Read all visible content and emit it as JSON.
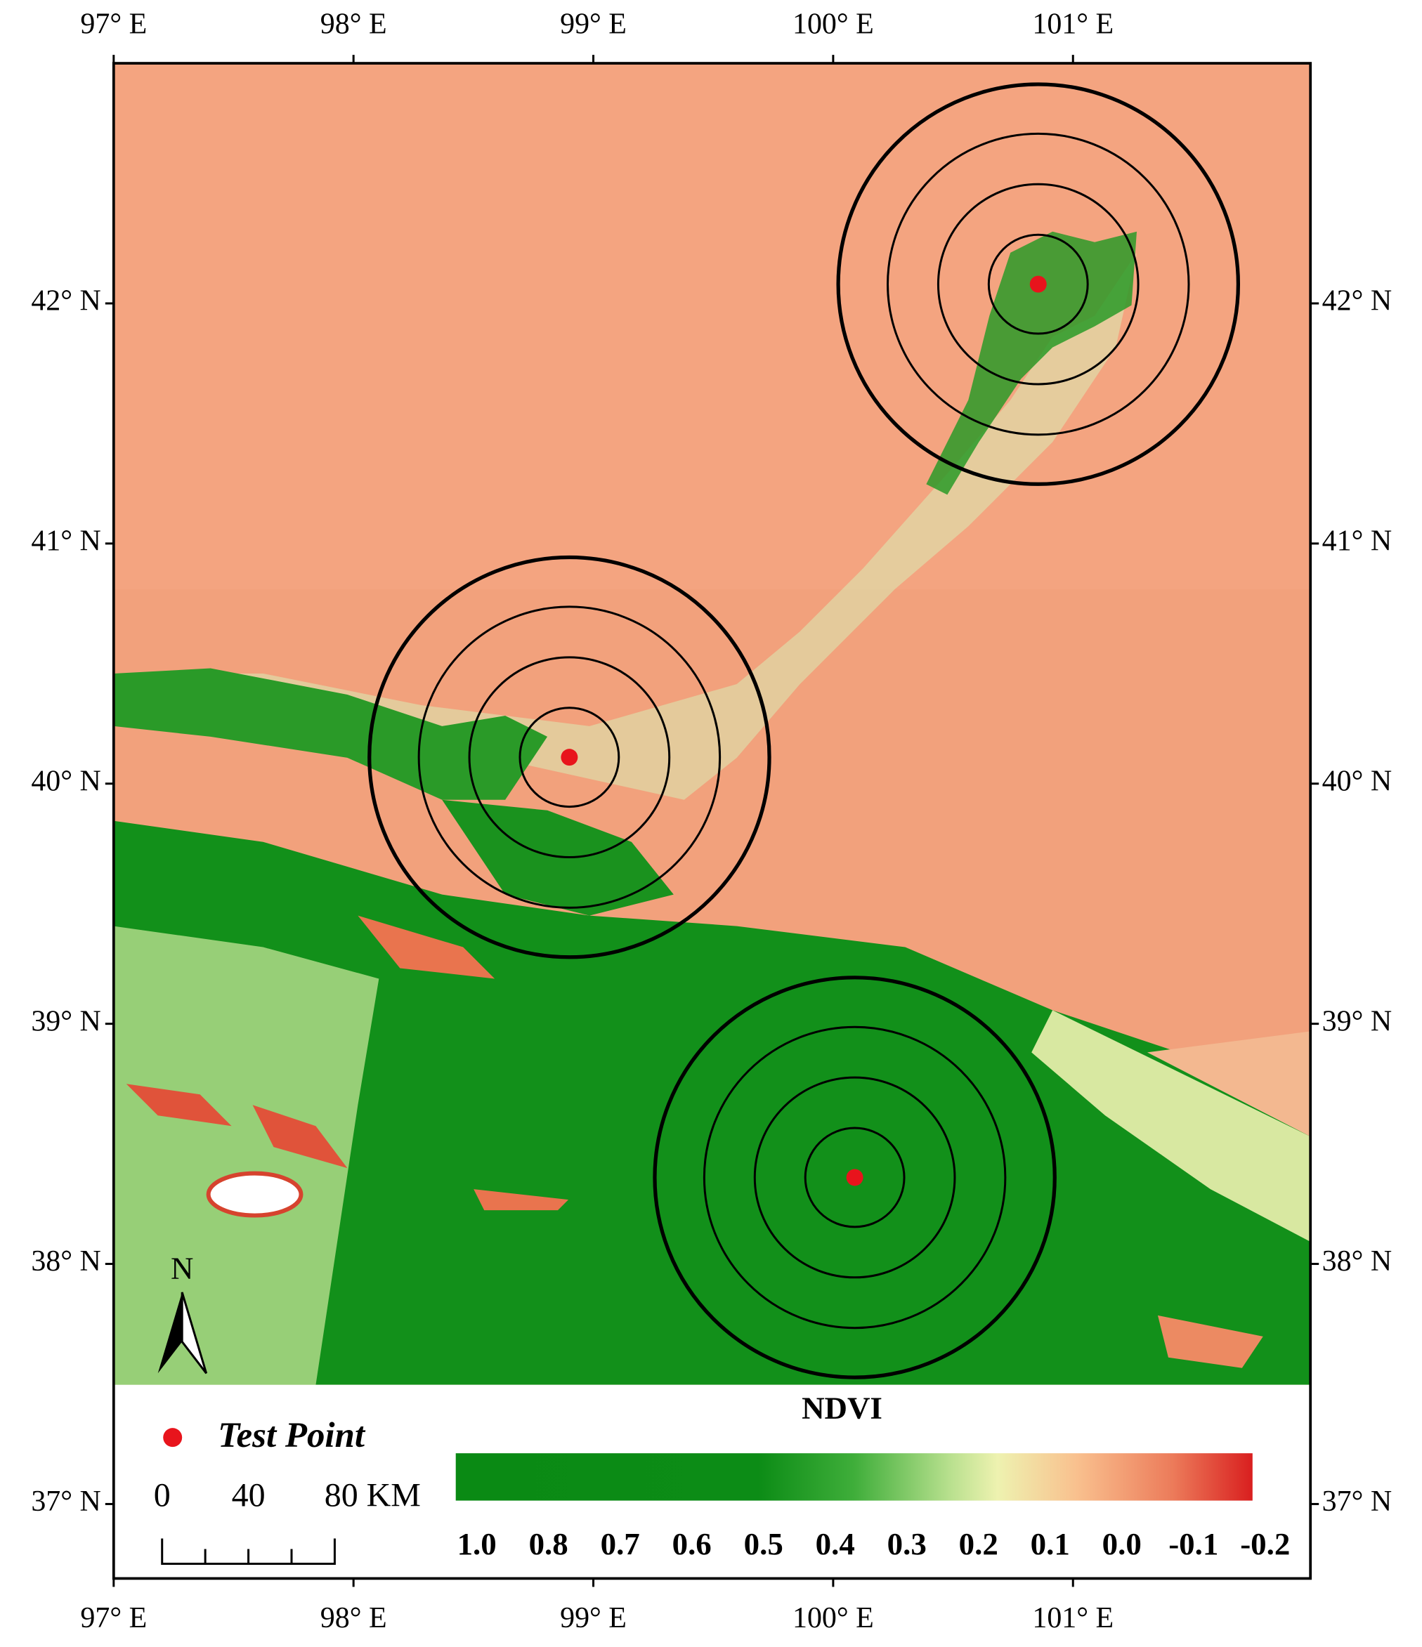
{
  "map": {
    "xlim": [
      97,
      101.99
    ],
    "ylim": [
      36.69,
      43.0
    ],
    "xticks": [
      {
        "value": 97,
        "label": "97° E"
      },
      {
        "value": 98,
        "label": "98° E"
      },
      {
        "value": 99,
        "label": "99° E"
      },
      {
        "value": 100,
        "label": "100° E"
      },
      {
        "value": 101,
        "label": "101° E"
      }
    ],
    "yticks": [
      {
        "value": 42,
        "label": "42° N"
      },
      {
        "value": 41,
        "label": "41° N"
      },
      {
        "value": 40,
        "label": "40° N"
      },
      {
        "value": 39,
        "label": "39° N"
      },
      {
        "value": 38,
        "label": "38° N"
      },
      {
        "value": 37,
        "label": "37° N"
      }
    ],
    "test_points": [
      {
        "lon": 100.855,
        "lat": 42.08
      },
      {
        "lon": 98.9,
        "lat": 40.11
      },
      {
        "lon": 100.09,
        "lat": 38.36
      }
    ],
    "point_color": "#e8141c",
    "north": "N",
    "legend": {
      "test_point": "Test Point"
    },
    "scale_bar": {
      "labels": [
        "0",
        "40",
        "80 KM"
      ]
    },
    "colorbar": {
      "title": "NDVI",
      "labels": [
        "1.0",
        "0.8",
        "0.7",
        "0.6",
        "0.5",
        "0.4",
        "0.3",
        "0.2",
        "0.1",
        "0.0",
        "-0.1",
        "-0.2"
      ]
    }
  }
}
